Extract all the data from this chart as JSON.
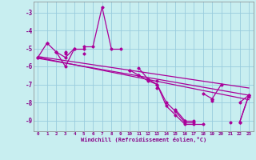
{
  "bg_color": "#c8eef0",
  "grid_color": "#99ccdd",
  "line_color": "#aa0099",
  "ylim": [
    -9.6,
    -2.4
  ],
  "xlim": [
    -0.5,
    23.5
  ],
  "yticks": [
    -9,
    -8,
    -7,
    -6,
    -5,
    -4,
    -3
  ],
  "xtick_labels": [
    "0",
    "1",
    "2",
    "3",
    "4",
    "5",
    "6",
    "7",
    "8",
    "9",
    "10",
    "11",
    "12",
    "13",
    "14",
    "15",
    "16",
    "17",
    "18",
    "19",
    "20",
    "21",
    "22",
    "23"
  ],
  "xlabel": "Windchill (Refroidissement éolien,°C)",
  "series": [
    [
      null,
      -4.7,
      null,
      -5.3,
      null,
      -4.9,
      -4.9,
      -2.7,
      -5.0,
      -5.0,
      null,
      -6.1,
      -6.7,
      -7.0,
      -8.2,
      -8.7,
      -9.2,
      -9.2,
      -9.2,
      null,
      null,
      -9.1,
      null,
      -7.7
    ],
    [
      -5.5,
      -4.7,
      -5.2,
      -6.0,
      -5.0,
      -5.0,
      null,
      null,
      null,
      null,
      -6.2,
      -6.5,
      -6.8,
      -7.0,
      -8.0,
      -8.5,
      -9.1,
      -9.1,
      null,
      -7.9,
      null,
      null,
      -9.1,
      -7.6
    ],
    [
      null,
      null,
      null,
      -5.2,
      null,
      -5.3,
      null,
      null,
      null,
      null,
      null,
      -6.5,
      null,
      -6.8,
      null,
      -8.4,
      -9.0,
      -9.0,
      null,
      -7.8,
      null,
      null,
      -9.1,
      -7.6
    ],
    [
      -5.5,
      null,
      -5.2,
      -5.5,
      -5.0,
      null,
      null,
      null,
      null,
      null,
      -6.2,
      null,
      null,
      -7.2,
      null,
      null,
      -9.0,
      null,
      -7.5,
      -7.8,
      -7.0,
      null,
      -8.0,
      -7.6
    ]
  ],
  "reg_lines": [
    [
      -5.55,
      -7.6
    ],
    [
      -5.45,
      -7.2
    ],
    [
      -5.5,
      -7.85
    ]
  ]
}
